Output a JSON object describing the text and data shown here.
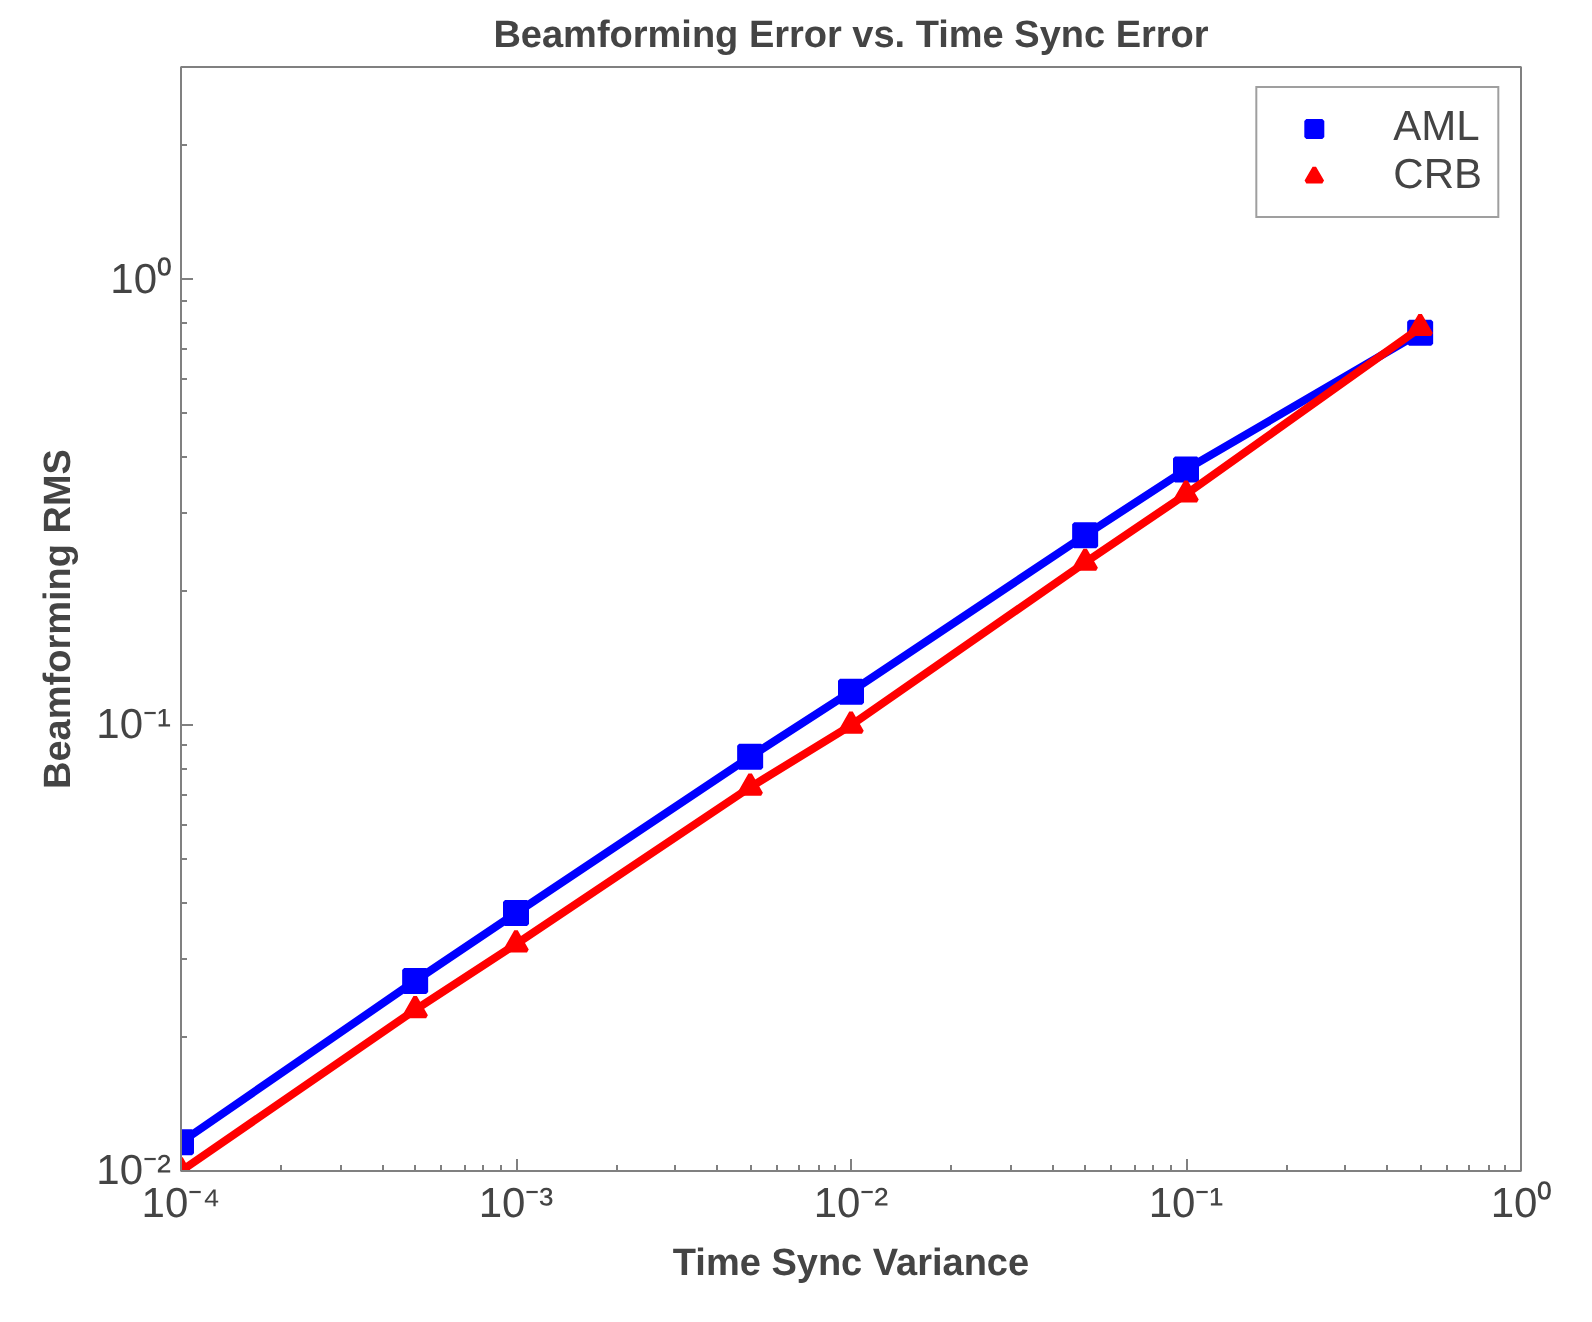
{
  "chart_data": {
    "type": "line",
    "title": "Beamforming Error vs. Time Sync Error",
    "xlabel": "Time Sync Variance",
    "ylabel": "Beamforming RMS",
    "x": [
      0.0001,
      0.0005,
      0.001,
      0.005,
      0.01,
      0.05,
      0.1,
      0.5
    ],
    "series": [
      {
        "name": "AML",
        "color": "#0000ff",
        "marker": "square",
        "values": [
          0.0116,
          0.0267,
          0.0379,
          0.085,
          0.119,
          0.267,
          0.375,
          0.76
        ]
      },
      {
        "name": "CRB",
        "color": "#ff0000",
        "marker": "triangle",
        "values": [
          0.01,
          0.023,
          0.0323,
          0.0726,
          0.1,
          0.232,
          0.33,
          0.78
        ]
      }
    ],
    "log": "xy",
    "xlim": [
      0.0001,
      1
    ],
    "ylim": [
      0.01,
      3
    ],
    "xticks": [
      {
        "value": 0.0001,
        "label": "10⁻⁴"
      },
      {
        "value": 0.001,
        "label": "10⁻³"
      },
      {
        "value": 0.01,
        "label": "10⁻²"
      },
      {
        "value": 0.1,
        "label": "10⁻¹"
      },
      {
        "value": 1,
        "label": "10⁰"
      }
    ],
    "yticks": [
      {
        "value": 0.01,
        "label": "10⁻²"
      },
      {
        "value": 0.1,
        "label": "10⁻¹"
      },
      {
        "value": 1,
        "label": "10⁰"
      }
    ],
    "grid": false,
    "legend": "top right",
    "line_style": "solid"
  }
}
